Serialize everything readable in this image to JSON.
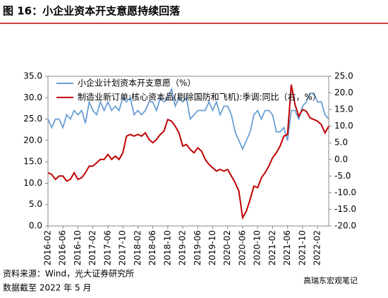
{
  "chart_data": {
    "type": "line",
    "title": "图 16：小企业资本开支意愿持续回落",
    "categories": [
      "2016-02",
      null,
      null,
      null,
      "2016-06",
      null,
      null,
      null,
      "2016-10",
      null,
      null,
      null,
      "2017-02",
      null,
      null,
      null,
      "2017-06",
      null,
      null,
      null,
      "2017-10",
      null,
      null,
      null,
      "2018-02",
      null,
      null,
      null,
      "2018-06",
      null,
      null,
      null,
      "2018-10",
      null,
      null,
      null,
      "2019-02",
      null,
      null,
      null,
      "2019-06",
      null,
      null,
      null,
      "2019-10",
      null,
      null,
      null,
      "2020-02",
      null,
      null,
      null,
      "2020-06",
      null,
      null,
      null,
      "2020-10",
      null,
      null,
      null,
      "2021-02",
      null,
      null,
      null,
      "2021-06",
      null,
      null,
      null,
      "2021-10",
      null,
      null,
      null,
      "2022-02",
      null,
      null,
      null
    ],
    "series": [
      {
        "name": "小企业计划资本开支意愿（%）",
        "color": "#6a9fd4",
        "axis": "y",
        "values": [
          25,
          23,
          25,
          25,
          23,
          26,
          25,
          27,
          26,
          27,
          24,
          29,
          27,
          26,
          29,
          27,
          29,
          27,
          28,
          27,
          30,
          29,
          30,
          26,
          27,
          26,
          27,
          29,
          29,
          27,
          30,
          29,
          30,
          32,
          28,
          30,
          29,
          30,
          25,
          26,
          27,
          27,
          27,
          29,
          27,
          29,
          26,
          28,
          28,
          26,
          22,
          20,
          18,
          20,
          22,
          26,
          27,
          25,
          27,
          27,
          26,
          22,
          22,
          23,
          20,
          27,
          27,
          25,
          28,
          29,
          31,
          31,
          29,
          29,
          26,
          25
        ]
      },
      {
        "name": "制造业新订单:核心资本品(剔除国防和飞机):季调:同比（右，%）",
        "color": "#c00000",
        "axis": "y2",
        "values": [
          -4,
          -4.5,
          -6,
          -5,
          -5,
          -6.5,
          -6,
          -4,
          -6,
          -5.5,
          -4,
          -2,
          -2,
          -1,
          0,
          0,
          1.5,
          0,
          1,
          0,
          2,
          7,
          7.5,
          7,
          7.5,
          7,
          8,
          6,
          5,
          6,
          7.5,
          8.5,
          12,
          11.5,
          10,
          8,
          4,
          4.5,
          3,
          2,
          3.5,
          2.5,
          0,
          -1.5,
          -2.5,
          -3.5,
          -3,
          -3.5,
          -3,
          -5,
          -7,
          -9.5,
          -17.5,
          -15.5,
          -12,
          -8,
          -8.5,
          -5.5,
          -4,
          -2,
          0.5,
          2,
          4,
          7,
          7.5,
          22.5,
          16.5,
          13,
          15,
          14.5,
          12.5,
          12,
          11.5,
          10.5,
          8,
          10
        ]
      }
    ],
    "ylim": [
      0,
      35
    ],
    "yticks": [
      {
        "value": 0,
        "label": "0.0"
      },
      {
        "value": 5,
        "label": "5.0"
      },
      {
        "value": 10,
        "label": "10.0"
      },
      {
        "value": 15,
        "label": "15.0"
      },
      {
        "value": 20,
        "label": "20.0"
      },
      {
        "value": 25,
        "label": "25.0"
      },
      {
        "value": 30,
        "label": "30.0"
      },
      {
        "value": 35,
        "label": "35.0"
      }
    ],
    "y2lim": [
      -20,
      25
    ],
    "y2ticks": [
      {
        "value": -20,
        "label": "-20.0"
      },
      {
        "value": -15,
        "label": "-15.0"
      },
      {
        "value": -10,
        "label": "-10.0"
      },
      {
        "value": -5,
        "label": "-5.0"
      },
      {
        "value": 0,
        "label": "0.0"
      },
      {
        "value": 5,
        "label": "5.0"
      },
      {
        "value": 10,
        "label": "10.0"
      },
      {
        "value": 15,
        "label": "15.0"
      },
      {
        "value": 20,
        "label": "20.0"
      },
      {
        "value": 25,
        "label": "25.0"
      }
    ]
  },
  "source": "资料来源：Wind，光大证券研究所",
  "date_note": "数据截至 2022 年 5 月",
  "watermark": "高瑞东宏观笔记"
}
